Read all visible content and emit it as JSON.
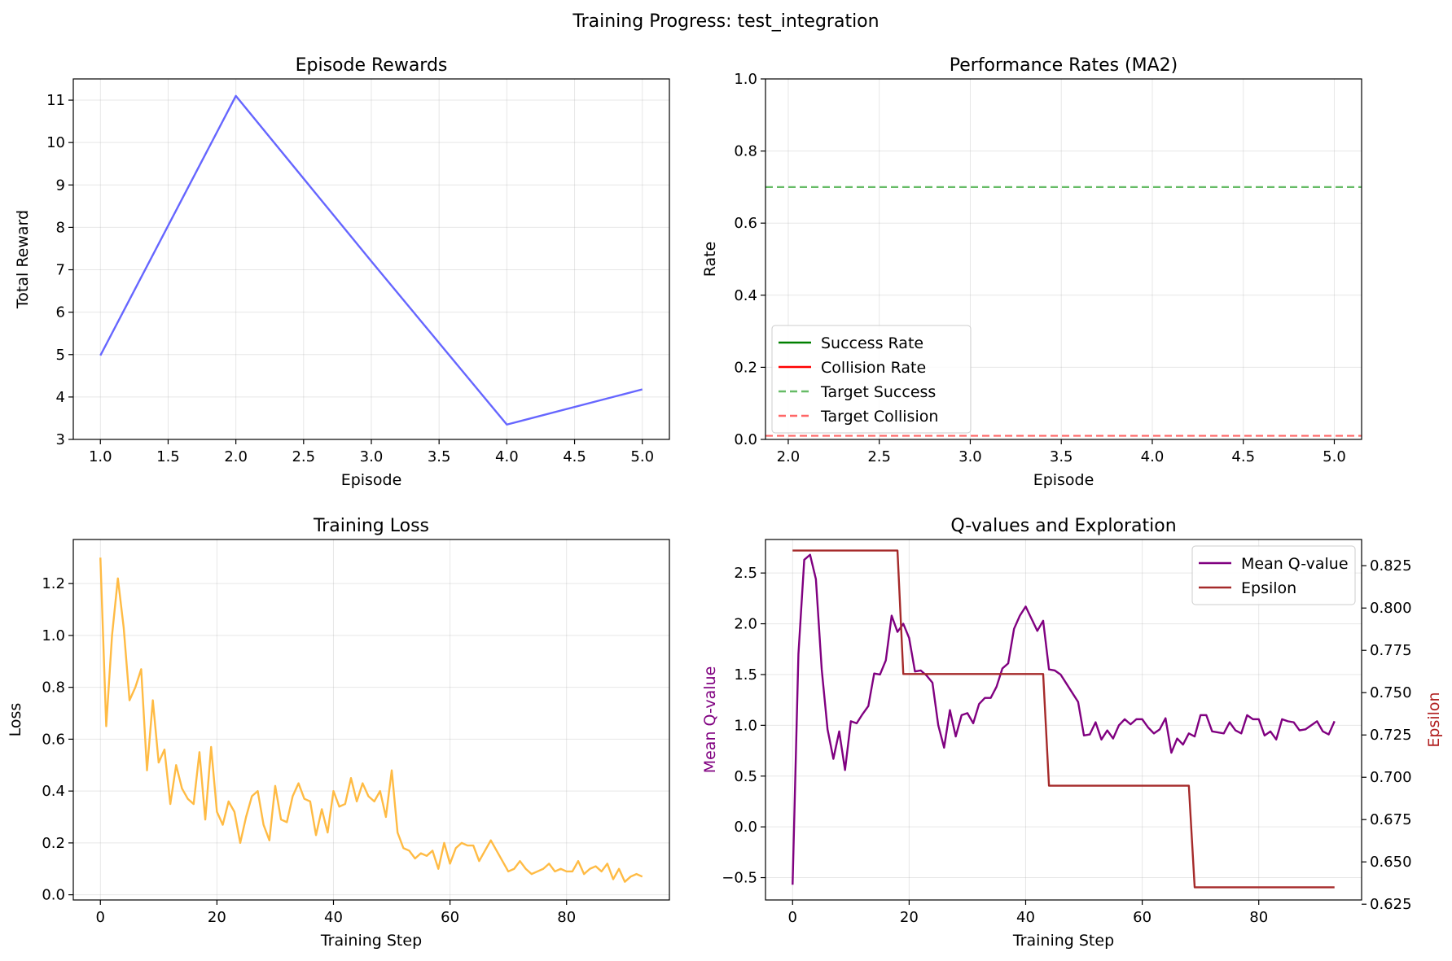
{
  "figure": {
    "suptitle": "Training Progress: test_integration"
  },
  "chart_data": [
    {
      "type": "line",
      "title": "Episode Rewards",
      "xlabel": "Episode",
      "ylabel": "Total Reward",
      "xlim": [
        0.8,
        5.2
      ],
      "ylim": [
        3.0,
        11.5
      ],
      "xticks": [
        1.0,
        1.5,
        2.0,
        2.5,
        3.0,
        3.5,
        4.0,
        4.5,
        5.0
      ],
      "xticklabels": [
        "1.0",
        "1.5",
        "2.0",
        "2.5",
        "3.0",
        "3.5",
        "4.0",
        "4.5",
        "5.0"
      ],
      "yticks": [
        3,
        4,
        5,
        6,
        7,
        8,
        9,
        10,
        11
      ],
      "yticklabels": [
        "3",
        "4",
        "5",
        "6",
        "7",
        "8",
        "9",
        "10",
        "11"
      ],
      "grid": true,
      "series": [
        {
          "x": [
            1,
            2,
            3,
            4,
            5
          ],
          "y": [
            4.98,
            11.1,
            7.2,
            3.35,
            4.18
          ],
          "color": "#6666ff"
        }
      ]
    },
    {
      "type": "line",
      "title": "Performance Rates (MA2)",
      "xlabel": "Episode",
      "ylabel": "Rate",
      "xlim": [
        1.875,
        5.15
      ],
      "ylim": [
        0,
        1.0
      ],
      "xticks": [
        2.0,
        2.5,
        3.0,
        3.5,
        4.0,
        4.5,
        5.0
      ],
      "xticklabels": [
        "2.0",
        "2.5",
        "3.0",
        "3.5",
        "4.0",
        "4.5",
        "5.0"
      ],
      "yticks": [
        0.0,
        0.2,
        0.4,
        0.6,
        0.8,
        1.0
      ],
      "yticklabels": [
        "0.0",
        "0.2",
        "0.4",
        "0.6",
        "0.8",
        "1.0"
      ],
      "grid": true,
      "legend_position": "lower-left",
      "series": [
        {
          "name": "Success Rate",
          "color": "#008000",
          "dash": false,
          "x": [],
          "y": []
        },
        {
          "name": "Collision Rate",
          "color": "#ff0000",
          "dash": false,
          "x": [],
          "y": []
        },
        {
          "name": "Target Success",
          "color": "#66bb66",
          "dash": true,
          "hline": 0.7
        },
        {
          "name": "Target Collision",
          "color": "#ff6666",
          "dash": true,
          "hline": 0.01
        }
      ]
    },
    {
      "type": "line",
      "title": "Training Loss",
      "xlabel": "Training Step",
      "ylabel": "Loss",
      "xlim": [
        -4.65,
        97.65
      ],
      "ylim": [
        -0.02,
        1.37
      ],
      "xticks": [
        0,
        20,
        40,
        60,
        80
      ],
      "xticklabels": [
        "0",
        "20",
        "40",
        "60",
        "80"
      ],
      "yticks": [
        0.0,
        0.2,
        0.4,
        0.6,
        0.8,
        1.0,
        1.2
      ],
      "yticklabels": [
        "0.0",
        "0.2",
        "0.4",
        "0.6",
        "0.8",
        "1.0",
        "1.2"
      ],
      "grid": true,
      "series": [
        {
          "color": "#ffbb44",
          "x_start": 0,
          "y": [
            1.3,
            0.65,
            1.0,
            1.22,
            1.03,
            0.75,
            0.8,
            0.87,
            0.48,
            0.75,
            0.51,
            0.56,
            0.35,
            0.5,
            0.41,
            0.37,
            0.35,
            0.55,
            0.29,
            0.57,
            0.32,
            0.27,
            0.36,
            0.32,
            0.2,
            0.3,
            0.38,
            0.4,
            0.27,
            0.21,
            0.42,
            0.29,
            0.28,
            0.38,
            0.43,
            0.37,
            0.36,
            0.23,
            0.33,
            0.24,
            0.4,
            0.34,
            0.35,
            0.45,
            0.36,
            0.43,
            0.38,
            0.36,
            0.4,
            0.3,
            0.48,
            0.24,
            0.18,
            0.17,
            0.14,
            0.16,
            0.15,
            0.17,
            0.1,
            0.2,
            0.12,
            0.18,
            0.2,
            0.19,
            0.19,
            0.13,
            0.17,
            0.21,
            0.17,
            0.13,
            0.09,
            0.1,
            0.13,
            0.1,
            0.08,
            0.09,
            0.1,
            0.12,
            0.09,
            0.1,
            0.09,
            0.09,
            0.13,
            0.08,
            0.1,
            0.11,
            0.09,
            0.12,
            0.06,
            0.1,
            0.05,
            0.07,
            0.08,
            0.07
          ]
        }
      ]
    },
    {
      "type": "line",
      "title": "Q-values and Exploration",
      "xlabel": "Training Step",
      "ylabel": "Mean Q-value",
      "ylabel_color": "#800080",
      "ylabel_right": "Epsilon",
      "ylabel_right_color": "#b22222",
      "xlim": [
        -4.65,
        97.65
      ],
      "ylim": [
        -0.72,
        2.83
      ],
      "ylim_right": [
        0.6275,
        0.8405
      ],
      "xticks": [
        0,
        20,
        40,
        60,
        80
      ],
      "xticklabels": [
        "0",
        "20",
        "40",
        "60",
        "80"
      ],
      "yticks": [
        -0.5,
        0.0,
        0.5,
        1.0,
        1.5,
        2.0,
        2.5
      ],
      "yticklabels": [
        "−0.5",
        "0.0",
        "0.5",
        "1.0",
        "1.5",
        "2.0",
        "2.5"
      ],
      "yticks_right": [
        0.625,
        0.65,
        0.675,
        0.7,
        0.725,
        0.75,
        0.775,
        0.8,
        0.825
      ],
      "yticklabels_right": [
        "0.625",
        "0.650",
        "0.675",
        "0.700",
        "0.725",
        "0.750",
        "0.775",
        "0.800",
        "0.825"
      ],
      "grid": true,
      "legend_position": "upper-right",
      "series": [
        {
          "name": "Mean Q-value",
          "axis": "left",
          "color": "#800080",
          "x_start": 0,
          "y": [
            -0.57,
            1.7,
            2.63,
            2.68,
            2.44,
            1.55,
            0.96,
            0.67,
            0.94,
            0.56,
            1.04,
            1.02,
            1.11,
            1.19,
            1.51,
            1.5,
            1.64,
            2.08,
            1.92,
            2.0,
            1.86,
            1.53,
            1.54,
            1.49,
            1.42,
            1.0,
            0.78,
            1.15,
            0.89,
            1.1,
            1.12,
            1.02,
            1.21,
            1.27,
            1.27,
            1.38,
            1.56,
            1.61,
            1.95,
            2.08,
            2.17,
            2.05,
            1.93,
            2.03,
            1.55,
            1.54,
            1.5,
            1.41,
            1.32,
            1.23,
            0.9,
            0.91,
            1.03,
            0.86,
            0.95,
            0.87,
            1.0,
            1.06,
            1.01,
            1.06,
            1.06,
            0.98,
            0.92,
            0.96,
            1.07,
            0.73,
            0.87,
            0.81,
            0.92,
            0.89,
            1.1,
            1.1,
            0.94,
            0.93,
            0.92,
            1.03,
            0.95,
            0.92,
            1.1,
            1.06,
            1.06,
            0.9,
            0.94,
            0.86,
            1.06,
            1.04,
            1.03,
            0.95,
            0.96,
            1.0,
            1.04,
            0.94,
            0.91,
            1.04
          ]
        },
        {
          "name": "Epsilon",
          "axis": "right",
          "color": "#a52a2a",
          "x": [
            0,
            18,
            19,
            43,
            44,
            68,
            69,
            93
          ],
          "y": [
            0.834,
            0.834,
            0.761,
            0.761,
            0.695,
            0.695,
            0.635,
            0.635
          ]
        }
      ]
    }
  ]
}
